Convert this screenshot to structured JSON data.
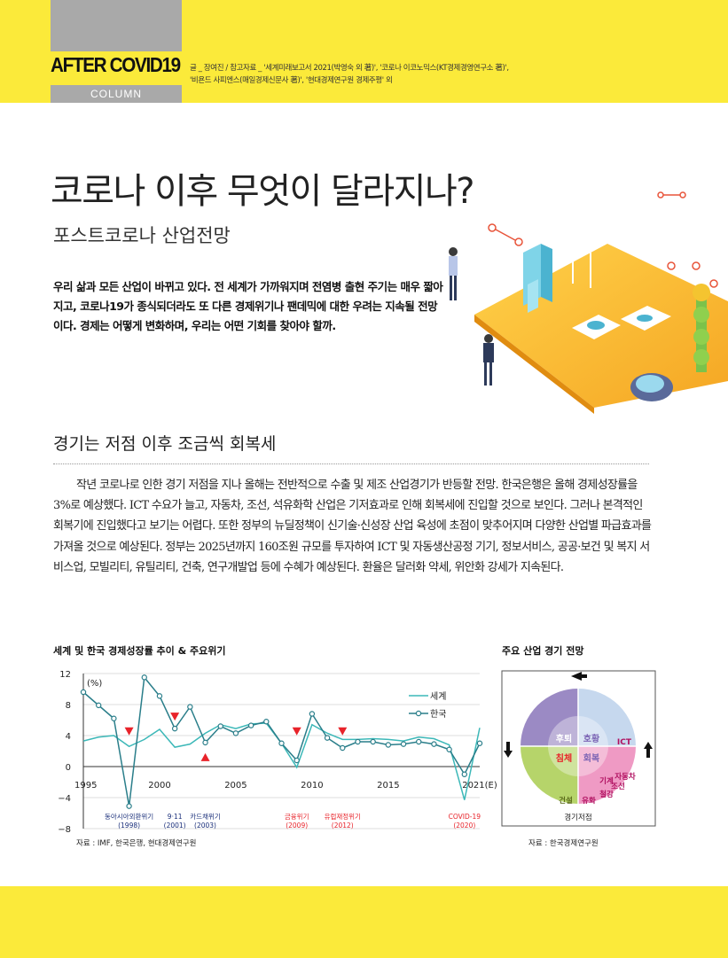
{
  "header": {
    "brand": "AFTER COVID19",
    "column_label": "COLUMN",
    "sources_line1": "글 _ 장여진 / 참고자료 _ '세계미래보고서 2021(박영숙 외 著)', '코로나 이코노믹스(KT경제경영연구소 著)',",
    "sources_line2": "'비욘드 사피엔스(매일경제신문사 著)', '현대경제연구원 경제주평' 외"
  },
  "article": {
    "title": "코로나 이후 무엇이 달라지나?",
    "subtitle": "포스트코로나 산업전망",
    "lead": "우리 삶과 모든 산업이 바뀌고 있다. 전 세계가 가까워지며 전염병 출현 주기는 매우 짧아지고, 코로나19가 종식되더라도 또 다른 경제위기나 팬데믹에 대한 우려는 지속될 전망이다. 경제는 어떻게 변화하며, 우리는 어떤 기회를 찾아야 할까.",
    "section_heading": "경기는 저점 이후 조금씩 회복세",
    "body": "작년 코로나로 인한 경기 저점을 지나 올해는 전반적으로 수출 및 제조 산업경기가 반등할 전망. 한국은행은 올해 경제성장률을 3%로 예상했다. ICT 수요가 늘고, 자동차, 조선, 석유화학 산업은 기저효과로 인해 회복세에 진입할 것으로 보인다. 그러나 본격적인 회복기에 진입했다고 보기는 어렵다. 또한 정부의 뉴딜정책이 신기술·신성장 산업 육성에 초점이 맞추어지며 다양한 산업별 파급효과를 가져올 것으로 예상된다. 정부는 2025년까지 160조원 규모를 투자하여 ICT 및 자동생산공정 기기, 정보서비스, 공공·보건 및 복지 서비스업, 모빌리티, 유틸리티, 건축, 연구개발업 등에 수혜가 예상된다. 환율은 달러화 약세, 위안화 강세가 지속된다."
  },
  "chart_data": [
    {
      "type": "line",
      "title": "세계 및 한국 경제성장률 추이 & 주요위기",
      "ylabel": "(%)",
      "ylim": [
        -8,
        12
      ],
      "yticks": [
        "12",
        "8",
        "4",
        "0",
        "−4",
        "−8"
      ],
      "xticks": [
        "1995",
        "2000",
        "2005",
        "2010",
        "2015",
        "2021(E)"
      ],
      "x": [
        1995,
        1996,
        1997,
        1998,
        1999,
        2000,
        2001,
        2002,
        2003,
        2004,
        2005,
        2006,
        2007,
        2008,
        2009,
        2010,
        2011,
        2012,
        2013,
        2014,
        2015,
        2016,
        2017,
        2018,
        2019,
        2020,
        2021
      ],
      "series": [
        {
          "name": "세계",
          "color": "#3cb8b8",
          "values": [
            3.3,
            3.8,
            4.0,
            2.6,
            3.5,
            4.8,
            2.5,
            2.9,
            4.3,
            5.4,
            4.9,
            5.5,
            5.6,
            3.0,
            -0.1,
            5.4,
            4.3,
            3.5,
            3.5,
            3.6,
            3.5,
            3.3,
            3.8,
            3.6,
            2.8,
            -4.3,
            5.0
          ]
        },
        {
          "name": "한국",
          "color": "#2a7e8a",
          "values": [
            9.6,
            7.9,
            6.2,
            -5.1,
            11.5,
            9.1,
            4.9,
            7.7,
            3.1,
            5.2,
            4.3,
            5.3,
            5.8,
            3.0,
            0.8,
            6.8,
            3.7,
            2.4,
            3.2,
            3.2,
            2.8,
            2.9,
            3.2,
            2.9,
            2.2,
            -1.0,
            3.0
          ]
        }
      ],
      "crises": [
        {
          "label": "동아시아외환위기",
          "year_label": "(1998)",
          "x": 1998,
          "marker": "down"
        },
        {
          "label": "9·11",
          "year_label": "(2001)",
          "x": 2001,
          "marker": "down"
        },
        {
          "label": "카드채위기",
          "year_label": "(2003)",
          "x": 2003,
          "marker": "up"
        },
        {
          "label": "금융위기",
          "year_label": "(2009)",
          "x": 2009,
          "marker": "down"
        },
        {
          "label": "유럽재정위기",
          "year_label": "(2012)",
          "x": 2012,
          "marker": "down"
        },
        {
          "label": "COVID-19",
          "year_label": "(2020)",
          "x": 2020,
          "marker": "none"
        }
      ],
      "source": "자료 : IMF, 한국은행, 현대경제연구원",
      "marker_color": "#e8232a"
    },
    {
      "type": "pie",
      "title": "주요 산업 경기 전망",
      "quadrants": [
        {
          "phase": "후퇴",
          "color": "#9b8ac4",
          "industries": []
        },
        {
          "phase": "호황",
          "color": "#c6d8ee",
          "industries": [
            "ICT"
          ]
        },
        {
          "phase": "회복",
          "color": "#ef9ac4",
          "industries": [
            "자동차",
            "조선",
            "기계",
            "유화",
            "철강"
          ]
        },
        {
          "phase": "침체",
          "color": "#b6d46a",
          "industries": [
            "건설"
          ]
        }
      ],
      "bottom_label": "경기저점",
      "source": "자료 : 한국경제연구원"
    }
  ]
}
